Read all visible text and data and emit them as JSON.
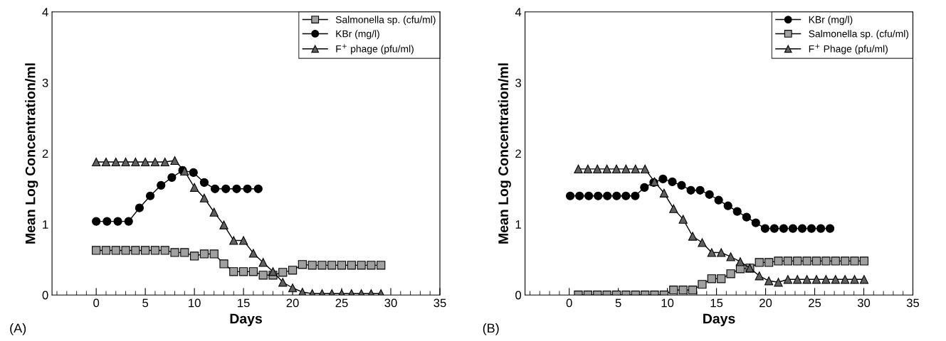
{
  "chart_data": [
    {
      "type": "line",
      "xlabel": "Days",
      "ylabel": "Mean Log Concentration/ml",
      "annotations": [
        "(A)"
      ],
      "xlim": [
        -4.5,
        35
      ],
      "ylim": [
        0,
        4
      ],
      "xticks": [
        0,
        5,
        10,
        15,
        20,
        25,
        30,
        35
      ],
      "yticks": [
        0,
        1,
        2,
        3,
        4
      ],
      "grid": false,
      "legend": "top right",
      "line_style": "solid",
      "series": [
        {
          "name": "Salmonella sp. (cfu/ml)",
          "color": "#a0a0a0",
          "marker": "square",
          "x": [
            0,
            1,
            2,
            3,
            4,
            5,
            6,
            7,
            8,
            9,
            10,
            11,
            12,
            13,
            14,
            15,
            16,
            17,
            18,
            19,
            20,
            21,
            22,
            23,
            24,
            25,
            26,
            27,
            28,
            29
          ],
          "values": [
            0.63,
            0.63,
            0.63,
            0.63,
            0.63,
            0.63,
            0.63,
            0.63,
            0.6,
            0.6,
            0.55,
            0.58,
            0.58,
            0.44,
            0.33,
            0.33,
            0.33,
            0.28,
            0.28,
            0.32,
            0.35,
            0.43,
            0.42,
            0.42,
            0.42,
            0.42,
            0.42,
            0.42,
            0.42,
            0.42
          ]
        },
        {
          "name": "KBr (mg/l)",
          "color": "#000000",
          "marker": "circle",
          "x": [
            0,
            1.1,
            2.2,
            3.3,
            4.4,
            5.5,
            6.6,
            7.7,
            8.8,
            9.9,
            11,
            12.1,
            13.2,
            14.3,
            15.4,
            16.5
          ],
          "values": [
            1.04,
            1.04,
            1.04,
            1.04,
            1.23,
            1.4,
            1.55,
            1.66,
            1.76,
            1.73,
            1.59,
            1.5,
            1.5,
            1.5,
            1.5,
            1.5
          ]
        },
        {
          "name": "F$^{+}$ phage (pfu/ml)",
          "color": "#606060",
          "marker": "triangle",
          "x": [
            0,
            1,
            2,
            3,
            4,
            5,
            6,
            7,
            8,
            9,
            10,
            11,
            12,
            13,
            14,
            15,
            16,
            17,
            18,
            19,
            20,
            21,
            22,
            23,
            24,
            25,
            26,
            27,
            28,
            29
          ],
          "values": [
            1.88,
            1.88,
            1.88,
            1.88,
            1.88,
            1.88,
            1.88,
            1.88,
            1.9,
            1.75,
            1.52,
            1.37,
            1.17,
            0.99,
            0.77,
            0.77,
            0.59,
            0.46,
            0.33,
            0.18,
            0.1,
            0.04,
            0.02,
            0.02,
            0.02,
            0.02,
            0.02,
            0.02,
            0.02,
            0.02
          ]
        }
      ]
    },
    {
      "type": "line",
      "xlabel": "Days",
      "ylabel": "Mean Log Concentration/ml",
      "annotations": [
        "(B)"
      ],
      "xlim": [
        -4.5,
        35
      ],
      "ylim": [
        0,
        4
      ],
      "xticks": [
        0,
        5,
        10,
        15,
        20,
        25,
        30,
        35
      ],
      "yticks": [
        0,
        1,
        2,
        3,
        4
      ],
      "grid": false,
      "legend": "top right",
      "line_style": "solid",
      "series": [
        {
          "name": "KBr (mg/l)",
          "color": "#000000",
          "marker": "circle",
          "x": [
            0.1,
            1.05,
            1.99,
            2.94,
            3.88,
            4.83,
            5.77,
            6.72,
            7.66,
            8.61,
            9.55,
            10.5,
            11.44,
            12.39,
            13.33,
            14.28,
            15.22,
            16.17,
            17.11,
            18.06,
            19.0,
            19.95,
            20.89,
            21.84,
            22.78,
            23.73,
            24.67,
            25.62,
            26.56
          ],
          "values": [
            1.4,
            1.4,
            1.4,
            1.4,
            1.4,
            1.4,
            1.4,
            1.4,
            1.52,
            1.59,
            1.64,
            1.6,
            1.55,
            1.48,
            1.48,
            1.42,
            1.34,
            1.26,
            1.18,
            1.1,
            1.02,
            0.94,
            0.94,
            0.94,
            0.94,
            0.94,
            0.94,
            0.94,
            0.94
          ]
        },
        {
          "name": "Salmonella sp. (cfu/ml)",
          "color": "#a0a0a0",
          "marker": "square",
          "x": [
            0.93,
            1.9,
            2.87,
            3.84,
            4.81,
            5.78,
            6.75,
            7.72,
            8.69,
            9.66,
            10.63,
            11.6,
            12.57,
            13.54,
            14.51,
            15.48,
            16.45,
            17.42,
            18.39,
            19.36,
            20.33,
            21.3,
            22.27,
            23.24,
            24.21,
            25.18,
            26.15,
            27.12,
            28.09,
            29.06,
            30.03
          ],
          "values": [
            0,
            0,
            0,
            0,
            0,
            0,
            0,
            0,
            0,
            0,
            0.07,
            0.07,
            0.07,
            0.15,
            0.23,
            0.23,
            0.3,
            0.37,
            0.38,
            0.46,
            0.46,
            0.48,
            0.48,
            0.48,
            0.48,
            0.48,
            0.48,
            0.48,
            0.48,
            0.48,
            0.48
          ]
        },
        {
          "name": "F$^{+}$ Phage (pfu/ml)",
          "color": "#606060",
          "marker": "triangle",
          "x": [
            0.93,
            1.9,
            2.87,
            3.84,
            4.81,
            5.78,
            6.75,
            7.72,
            8.69,
            9.66,
            10.63,
            11.6,
            12.57,
            13.54,
            14.51,
            15.48,
            16.45,
            17.42,
            18.39,
            19.36,
            20.33,
            21.3,
            22.27,
            23.24,
            24.21,
            25.18,
            26.15,
            27.12,
            28.09,
            29.06,
            30.03
          ],
          "values": [
            1.78,
            1.78,
            1.78,
            1.78,
            1.78,
            1.78,
            1.78,
            1.78,
            1.6,
            1.44,
            1.22,
            1.07,
            0.83,
            0.74,
            0.6,
            0.6,
            0.54,
            0.47,
            0.38,
            0.27,
            0.2,
            0.18,
            0.22,
            0.22,
            0.22,
            0.22,
            0.22,
            0.22,
            0.22,
            0.22,
            0.22
          ]
        }
      ]
    }
  ]
}
